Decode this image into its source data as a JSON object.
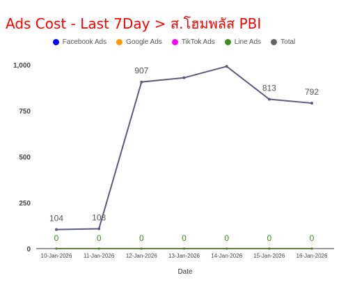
{
  "chart_data": {
    "type": "line",
    "title": "Ads Cost - Last 7Day > ส.โฮมพลัส PBI",
    "xlabel": "Date",
    "ylabel": "",
    "categories": [
      "10-Jan-2026",
      "11-Jan-2026",
      "12-Jan-2026",
      "13-Jan-2026",
      "14-Jan-2026",
      "15-Jan-2026",
      "16-Jan-2026"
    ],
    "ylim": [
      0,
      1050
    ],
    "yticks": [
      0,
      250,
      500,
      750,
      1000
    ],
    "ytick_labels": [
      "0",
      "250",
      "500",
      "750",
      "1,000"
    ],
    "legend_position": "top",
    "grid": false,
    "series": [
      {
        "name": "Facebook Ads",
        "color": "#0000ff",
        "values": [
          0,
          0,
          0,
          0,
          0,
          0,
          0
        ],
        "labels": []
      },
      {
        "name": "Google Ads",
        "color": "#ff9900",
        "values": [
          0,
          0,
          0,
          0,
          0,
          0,
          0
        ],
        "labels": []
      },
      {
        "name": "TikTok Ads",
        "color": "#ff00ff",
        "values": [
          0,
          0,
          0,
          0,
          0,
          0,
          0
        ],
        "labels": []
      },
      {
        "name": "Line Ads",
        "color": "#3c8c1c",
        "values": [
          0,
          0,
          0,
          0,
          0,
          0,
          0
        ],
        "labels": [
          "0",
          "0",
          "0",
          "0",
          "0",
          "0",
          "0"
        ]
      },
      {
        "name": "Total",
        "color": "#5a5a7a",
        "values": [
          104,
          108,
          907,
          930,
          992,
          813,
          792
        ],
        "labels": [
          "104",
          "108",
          "907",
          "",
          "",
          "813",
          "792"
        ]
      }
    ]
  },
  "legend_colors": {
    "Facebook Ads": "#0000ff",
    "Google Ads": "#ff9900",
    "TikTok Ads": "#ff00ff",
    "Line Ads": "#3c8c1c",
    "Total": "#666666"
  }
}
